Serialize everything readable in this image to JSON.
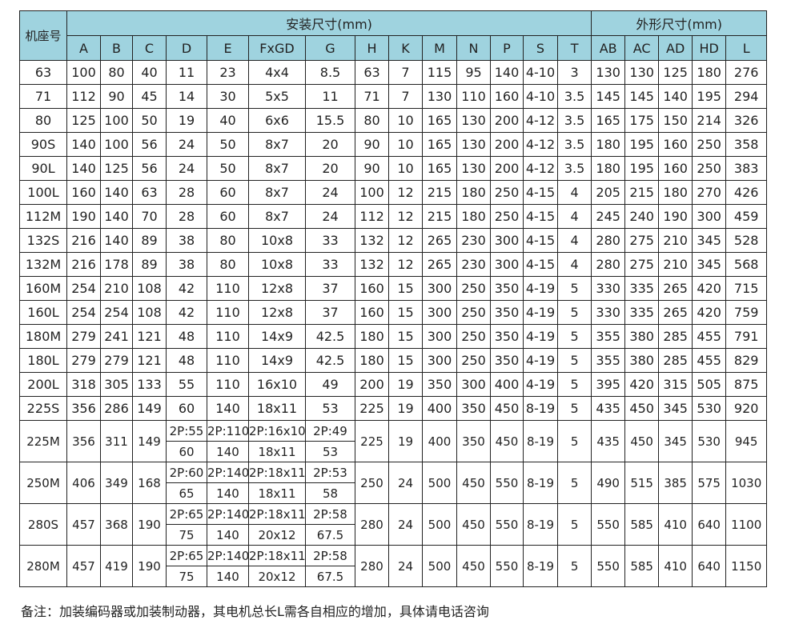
{
  "header": {
    "frame_label": "机座号",
    "install_group": "安装尺寸(mm)",
    "outline_group": "外形尺寸(mm)",
    "install_cols": [
      "A",
      "B",
      "C",
      "D",
      "E",
      "FxGD",
      "G",
      "H",
      "K",
      "M",
      "N",
      "P",
      "S",
      "T"
    ],
    "outline_cols": [
      "AB",
      "AC",
      "AD",
      "HD",
      "L"
    ]
  },
  "rows": [
    [
      "63",
      "100",
      "80",
      "40",
      "11",
      "23",
      "4x4",
      "8.5",
      "63",
      "7",
      "115",
      "95",
      "140",
      "4-10",
      "3",
      "130",
      "130",
      "125",
      "180",
      "276"
    ],
    [
      "71",
      "112",
      "90",
      "45",
      "14",
      "30",
      "5x5",
      "11",
      "71",
      "7",
      "130",
      "110",
      "160",
      "4-10",
      "3.5",
      "145",
      "145",
      "140",
      "195",
      "294"
    ],
    [
      "80",
      "125",
      "100",
      "50",
      "19",
      "40",
      "6x6",
      "15.5",
      "80",
      "10",
      "165",
      "130",
      "200",
      "4-12",
      "3.5",
      "165",
      "175",
      "150",
      "214",
      "326"
    ],
    [
      "90S",
      "140",
      "100",
      "56",
      "24",
      "50",
      "8x7",
      "20",
      "90",
      "10",
      "165",
      "130",
      "200",
      "4-12",
      "3.5",
      "180",
      "195",
      "160",
      "250",
      "358"
    ],
    [
      "90L",
      "140",
      "125",
      "56",
      "24",
      "50",
      "8x7",
      "20",
      "90",
      "10",
      "165",
      "130",
      "200",
      "4-12",
      "3.5",
      "180",
      "195",
      "160",
      "250",
      "383"
    ],
    [
      "100L",
      "160",
      "140",
      "63",
      "28",
      "60",
      "8x7",
      "24",
      "100",
      "12",
      "215",
      "180",
      "250",
      "4-15",
      "4",
      "205",
      "215",
      "180",
      "270",
      "426"
    ],
    [
      "112M",
      "190",
      "140",
      "70",
      "28",
      "60",
      "8x7",
      "24",
      "112",
      "12",
      "215",
      "180",
      "250",
      "4-15",
      "4",
      "245",
      "240",
      "190",
      "300",
      "459"
    ],
    [
      "132S",
      "216",
      "140",
      "89",
      "38",
      "80",
      "10x8",
      "33",
      "132",
      "12",
      "265",
      "230",
      "300",
      "4-15",
      "4",
      "280",
      "275",
      "210",
      "345",
      "528"
    ],
    [
      "132M",
      "216",
      "178",
      "89",
      "38",
      "80",
      "10x8",
      "33",
      "132",
      "12",
      "265",
      "230",
      "300",
      "4-15",
      "4",
      "280",
      "275",
      "210",
      "345",
      "568"
    ],
    [
      "160M",
      "254",
      "210",
      "108",
      "42",
      "110",
      "12x8",
      "37",
      "160",
      "15",
      "300",
      "250",
      "350",
      "4-19",
      "5",
      "330",
      "335",
      "265",
      "420",
      "715"
    ],
    [
      "160L",
      "254",
      "254",
      "108",
      "42",
      "110",
      "12x8",
      "37",
      "160",
      "15",
      "300",
      "250",
      "350",
      "4-19",
      "5",
      "330",
      "335",
      "265",
      "420",
      "759"
    ],
    [
      "180M",
      "279",
      "241",
      "121",
      "48",
      "110",
      "14x9",
      "42.5",
      "180",
      "15",
      "300",
      "250",
      "350",
      "4-19",
      "5",
      "355",
      "380",
      "285",
      "455",
      "791"
    ],
    [
      "180L",
      "279",
      "279",
      "121",
      "48",
      "110",
      "14x9",
      "42.5",
      "180",
      "15",
      "300",
      "250",
      "350",
      "4-19",
      "5",
      "355",
      "380",
      "285",
      "455",
      "829"
    ],
    [
      "200L",
      "318",
      "305",
      "133",
      "55",
      "110",
      "16x10",
      "49",
      "200",
      "19",
      "350",
      "300",
      "400",
      "4-19",
      "5",
      "395",
      "420",
      "315",
      "505",
      "875"
    ],
    [
      "225S",
      "356",
      "286",
      "149",
      "60",
      "140",
      "18x11",
      "53",
      "225",
      "19",
      "400",
      "350",
      "450",
      "8-19",
      "5",
      "435",
      "450",
      "345",
      "530",
      "920"
    ]
  ],
  "split_rows": [
    {
      "main": [
        "225M",
        "356",
        "311",
        "149"
      ],
      "top": [
        "2P:55",
        "2P:110",
        "2P:16x10",
        "2P:49"
      ],
      "bottom": [
        "60",
        "140",
        "18x11",
        "53"
      ],
      "rest": [
        "225",
        "19",
        "400",
        "350",
        "450",
        "8-19",
        "5",
        "435",
        "450",
        "345",
        "530",
        "945"
      ]
    },
    {
      "main": [
        "250M",
        "406",
        "349",
        "168"
      ],
      "top": [
        "2P:60",
        "2P:140",
        "2P:18x11",
        "2P:53"
      ],
      "bottom": [
        "65",
        "140",
        "18x11",
        "58"
      ],
      "rest": [
        "250",
        "24",
        "500",
        "450",
        "550",
        "8-19",
        "5",
        "490",
        "515",
        "385",
        "575",
        "1030"
      ]
    },
    {
      "main": [
        "280S",
        "457",
        "368",
        "190"
      ],
      "top": [
        "2P:65",
        "2P:140",
        "2P:18x11",
        "2P:58"
      ],
      "bottom": [
        "75",
        "140",
        "20x12",
        "67.5"
      ],
      "rest": [
        "280",
        "24",
        "500",
        "450",
        "550",
        "8-19",
        "5",
        "550",
        "585",
        "410",
        "640",
        "1100"
      ]
    },
    {
      "main": [
        "280M",
        "457",
        "419",
        "190"
      ],
      "top": [
        "2P:65",
        "2P:140",
        "2P:18x11",
        "2P:58"
      ],
      "bottom": [
        "75",
        "140",
        "20x12",
        "67.5"
      ],
      "rest": [
        "280",
        "24",
        "500",
        "450",
        "550",
        "8-19",
        "5",
        "550",
        "585",
        "410",
        "640",
        "1150"
      ]
    }
  ],
  "footnote": "备注：加装编码器或加装制动器，其电机总长L需各自相应的增加，具体请电话咨询",
  "colors": {
    "header_bg": "#9fd3df",
    "border": "#222222"
  }
}
